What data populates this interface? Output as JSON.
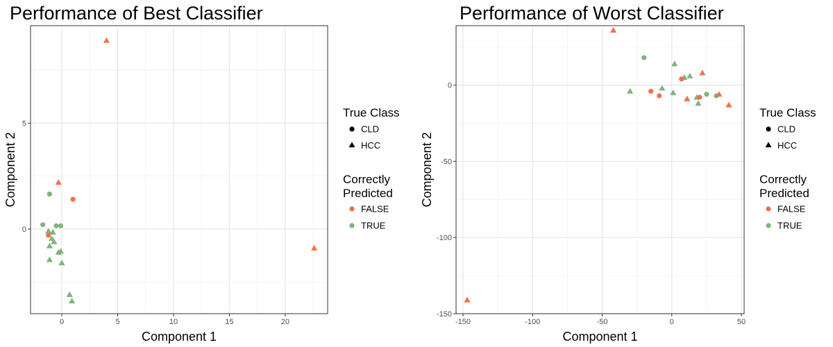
{
  "colors": {
    "false": "#f4704a",
    "true": "#7fb37c",
    "black": "#000000"
  },
  "legend": {
    "shape_title": "True Class",
    "shape_entries": [
      {
        "label": "CLD",
        "shape": "circle"
      },
      {
        "label": "HCC",
        "shape": "triangle"
      }
    ],
    "color_title_line1": "Correctly",
    "color_title_line2": "Predicted",
    "color_entries": [
      {
        "label": "FALSE",
        "key": "false"
      },
      {
        "label": "TRUE",
        "key": "true"
      }
    ]
  },
  "chart_data": [
    {
      "type": "scatter",
      "title": "Performance of Best Classifier",
      "xlabel": "Component 1",
      "ylabel": "Component 2",
      "xlim": [
        -2.8,
        23.8
      ],
      "ylim": [
        -4.0,
        9.6
      ],
      "xticks": [
        0,
        5,
        10,
        15,
        20
      ],
      "yticks": [
        0,
        5
      ],
      "grid": true,
      "points": [
        {
          "x": 4.0,
          "y": 8.9,
          "shape": "HCC",
          "correct": "FALSE"
        },
        {
          "x": -0.3,
          "y": 2.2,
          "shape": "HCC",
          "correct": "FALSE"
        },
        {
          "x": 1.0,
          "y": 1.4,
          "shape": "CLD",
          "correct": "FALSE"
        },
        {
          "x": -1.1,
          "y": 1.65,
          "shape": "CLD",
          "correct": "TRUE"
        },
        {
          "x": -1.7,
          "y": 0.2,
          "shape": "CLD",
          "correct": "TRUE"
        },
        {
          "x": -0.5,
          "y": 0.15,
          "shape": "CLD",
          "correct": "TRUE"
        },
        {
          "x": -0.1,
          "y": 0.15,
          "shape": "CLD",
          "correct": "TRUE"
        },
        {
          "x": -1.2,
          "y": -0.1,
          "shape": "HCC",
          "correct": "TRUE"
        },
        {
          "x": -0.8,
          "y": -0.15,
          "shape": "HCC",
          "correct": "TRUE"
        },
        {
          "x": -1.2,
          "y": -0.3,
          "shape": "CLD",
          "correct": "FALSE"
        },
        {
          "x": -0.9,
          "y": -0.45,
          "shape": "HCC",
          "correct": "TRUE"
        },
        {
          "x": -0.7,
          "y": -0.6,
          "shape": "HCC",
          "correct": "TRUE"
        },
        {
          "x": -1.1,
          "y": -0.8,
          "shape": "HCC",
          "correct": "TRUE"
        },
        {
          "x": -0.3,
          "y": -1.1,
          "shape": "HCC",
          "correct": "TRUE"
        },
        {
          "x": -0.1,
          "y": -1.05,
          "shape": "HCC",
          "correct": "TRUE"
        },
        {
          "x": -1.1,
          "y": -1.45,
          "shape": "HCC",
          "correct": "TRUE"
        },
        {
          "x": 0.0,
          "y": -1.6,
          "shape": "HCC",
          "correct": "TRUE"
        },
        {
          "x": 0.7,
          "y": -3.1,
          "shape": "HCC",
          "correct": "TRUE"
        },
        {
          "x": 0.9,
          "y": -3.4,
          "shape": "HCC",
          "correct": "TRUE"
        },
        {
          "x": 22.6,
          "y": -0.9,
          "shape": "HCC",
          "correct": "FALSE"
        }
      ]
    },
    {
      "type": "scatter",
      "title": "Performance of Worst Classifier",
      "xlabel": "Component 1",
      "ylabel": "Component 2",
      "xlim": [
        -155,
        52
      ],
      "ylim": [
        -150,
        39
      ],
      "xticks": [
        -150,
        -100,
        -50,
        0,
        50
      ],
      "yticks": [
        -150,
        -100,
        -50,
        0
      ],
      "grid": true,
      "points": [
        {
          "x": -42,
          "y": 36,
          "shape": "HCC",
          "correct": "FALSE"
        },
        {
          "x": -20,
          "y": 18,
          "shape": "CLD",
          "correct": "TRUE"
        },
        {
          "x": 2,
          "y": 14,
          "shape": "HCC",
          "correct": "TRUE"
        },
        {
          "x": 22,
          "y": 8,
          "shape": "HCC",
          "correct": "FALSE"
        },
        {
          "x": 13,
          "y": 6,
          "shape": "HCC",
          "correct": "TRUE"
        },
        {
          "x": 9,
          "y": 5,
          "shape": "HCC",
          "correct": "TRUE"
        },
        {
          "x": 7,
          "y": 4,
          "shape": "CLD",
          "correct": "FALSE"
        },
        {
          "x": -30,
          "y": -4,
          "shape": "HCC",
          "correct": "TRUE"
        },
        {
          "x": -7,
          "y": -2,
          "shape": "HCC",
          "correct": "TRUE"
        },
        {
          "x": -15,
          "y": -4,
          "shape": "CLD",
          "correct": "FALSE"
        },
        {
          "x": -9,
          "y": -7,
          "shape": "CLD",
          "correct": "FALSE"
        },
        {
          "x": 1,
          "y": -5,
          "shape": "HCC",
          "correct": "TRUE"
        },
        {
          "x": 11,
          "y": -9,
          "shape": "HCC",
          "correct": "FALSE"
        },
        {
          "x": 18,
          "y": -8,
          "shape": "HCC",
          "correct": "TRUE"
        },
        {
          "x": 20,
          "y": -8,
          "shape": "CLD",
          "correct": "FALSE"
        },
        {
          "x": 19,
          "y": -12,
          "shape": "HCC",
          "correct": "TRUE"
        },
        {
          "x": 25,
          "y": -6,
          "shape": "CLD",
          "correct": "TRUE"
        },
        {
          "x": 32,
          "y": -7,
          "shape": "CLD",
          "correct": "TRUE"
        },
        {
          "x": 34,
          "y": -6,
          "shape": "HCC",
          "correct": "FALSE"
        },
        {
          "x": 41,
          "y": -13,
          "shape": "HCC",
          "correct": "FALSE"
        },
        {
          "x": -147,
          "y": -141,
          "shape": "HCC",
          "correct": "FALSE"
        }
      ]
    }
  ]
}
